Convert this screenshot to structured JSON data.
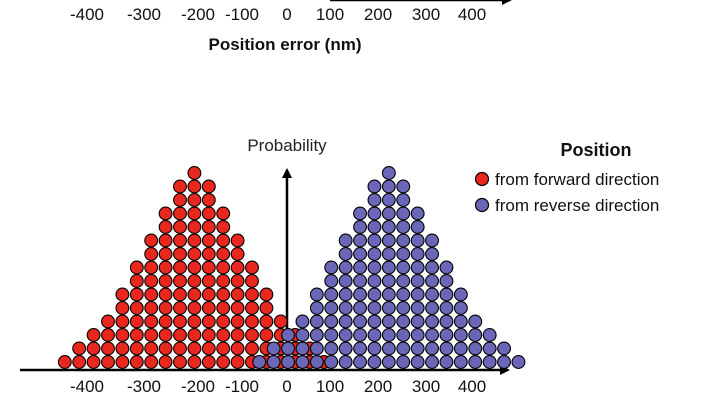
{
  "chart_data": [
    {
      "type": "scatter",
      "note_visible_part": "bottom of upper panel only",
      "xlabel": "Position error (nm)",
      "tick_labels": [
        "-400",
        "-300",
        "-200",
        "-100",
        "0",
        "100",
        "200",
        "300",
        "400"
      ],
      "xlim": [
        -400,
        400
      ]
    },
    {
      "type": "scatter",
      "ylabel": "Probability",
      "tick_labels": [
        "-400",
        "-300",
        "-200",
        "-100",
        "0",
        "100",
        "200",
        "300",
        "400"
      ],
      "xlim": [
        -400,
        400
      ],
      "legend": {
        "title": "Position",
        "placement": "top-right"
      },
      "series": [
        {
          "name": "from forward direction",
          "color": "#e8281e",
          "center": -200,
          "column_counts": [
            1,
            2,
            3,
            4,
            6,
            8,
            10,
            12,
            14,
            15,
            14,
            12,
            10,
            8,
            6,
            4,
            3,
            2,
            1
          ],
          "column_spacing": 14.4
        },
        {
          "name": "from reverse direction",
          "color": "#6b67b8",
          "center": 220,
          "column_counts": [
            1,
            2,
            3,
            4,
            6,
            8,
            10,
            12,
            14,
            15,
            14,
            12,
            10,
            8,
            6,
            4,
            3,
            2,
            1
          ],
          "column_spacing": 14.4
        }
      ]
    }
  ]
}
